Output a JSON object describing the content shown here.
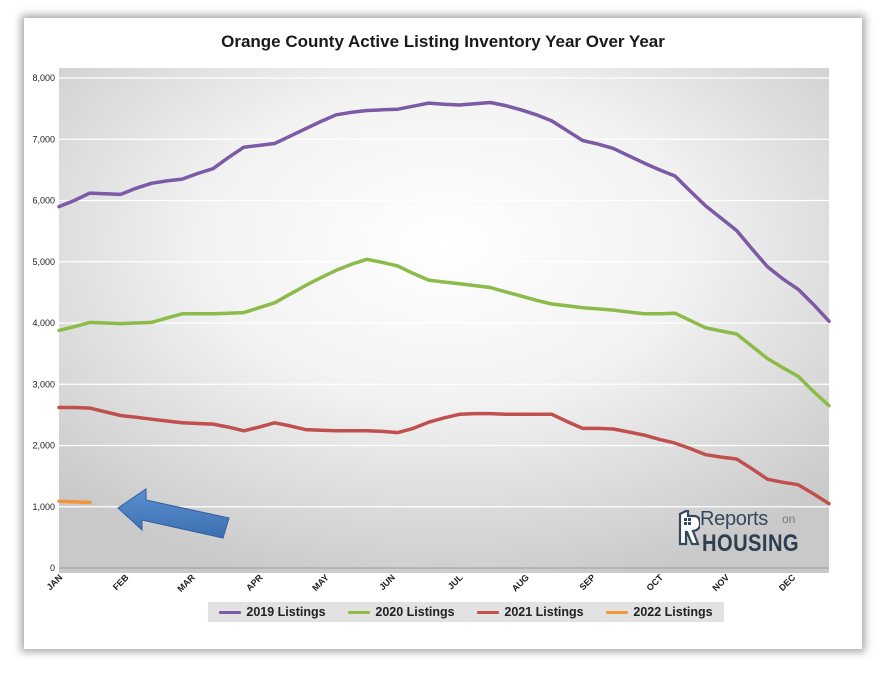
{
  "chart_data": {
    "type": "line",
    "title": "Orange County Active Listing Inventory Year Over Year",
    "xlabel": "",
    "ylabel": "",
    "ylim": [
      0,
      8000
    ],
    "yticks": [
      0,
      1000,
      2000,
      3000,
      4000,
      5000,
      6000,
      7000,
      8000
    ],
    "ytick_labels": [
      "0",
      "1,000",
      "2,000",
      "3,000",
      "4,000",
      "5,000",
      "6,000",
      "7,000",
      "8,000"
    ],
    "x_weeks": 53,
    "month_labels": [
      {
        "label": "JAN",
        "week": 0
      },
      {
        "label": "FEB",
        "week": 4.3
      },
      {
        "label": "MAR",
        "week": 8.6
      },
      {
        "label": "APR",
        "week": 13
      },
      {
        "label": "MAY",
        "week": 17.3
      },
      {
        "label": "JUN",
        "week": 21.6
      },
      {
        "label": "JUL",
        "week": 26
      },
      {
        "label": "AUG",
        "week": 30.3
      },
      {
        "label": "SEP",
        "week": 34.6
      },
      {
        "label": "OCT",
        "week": 39
      },
      {
        "label": "NOV",
        "week": 43.3
      },
      {
        "label": "DEC",
        "week": 47.6
      }
    ],
    "series": [
      {
        "name": "2019 Listings",
        "color": "#7b5aa6",
        "values": [
          5900,
          6000,
          6120,
          6110,
          6100,
          6200,
          6280,
          6320,
          6350,
          6440,
          6520,
          6700,
          6870,
          6900,
          6930,
          7050,
          7170,
          7290,
          7400,
          7440,
          7470,
          7480,
          7490,
          7540,
          7590,
          7570,
          7560,
          7580,
          7600,
          7550,
          7480,
          7400,
          7300,
          7140,
          6980,
          6920,
          6850,
          6730,
          6610,
          6500,
          6400,
          6150,
          5910,
          5710,
          5510,
          5210,
          4920,
          4720,
          4550,
          4300,
          4030
        ]
      },
      {
        "name": "2020 Listings",
        "color": "#8dbb4a",
        "values": [
          3880,
          3940,
          4010,
          4000,
          3990,
          4000,
          4010,
          4080,
          4150,
          4150,
          4150,
          4160,
          4170,
          4250,
          4330,
          4470,
          4610,
          4740,
          4860,
          4960,
          5040,
          4990,
          4930,
          4810,
          4700,
          4670,
          4640,
          4610,
          4580,
          4510,
          4440,
          4370,
          4310,
          4280,
          4250,
          4230,
          4210,
          4180,
          4150,
          4150,
          4160,
          4040,
          3920,
          3870,
          3820,
          3620,
          3420,
          3270,
          3130,
          2880,
          2650
        ]
      },
      {
        "name": "2021 Listings",
        "color": "#c0504d",
        "values": [
          2620,
          2620,
          2610,
          2550,
          2490,
          2460,
          2430,
          2400,
          2370,
          2360,
          2350,
          2300,
          2240,
          2300,
          2370,
          2320,
          2260,
          2250,
          2240,
          2240,
          2240,
          2230,
          2210,
          2280,
          2380,
          2450,
          2510,
          2520,
          2520,
          2510,
          2510,
          2510,
          2510,
          2390,
          2280,
          2280,
          2270,
          2220,
          2170,
          2100,
          2040,
          1950,
          1850,
          1810,
          1780,
          1620,
          1450,
          1400,
          1360,
          1210,
          1050
        ]
      },
      {
        "name": "2022 Listings",
        "color": "#f2953c",
        "values": [
          1090,
          1080,
          1070
        ]
      }
    ],
    "legend_position": "bottom"
  },
  "logo": {
    "reports": "Reports",
    "on": "on",
    "housing": "HOUSING"
  },
  "arrow_icon": "blue-arrow-pointing-left"
}
